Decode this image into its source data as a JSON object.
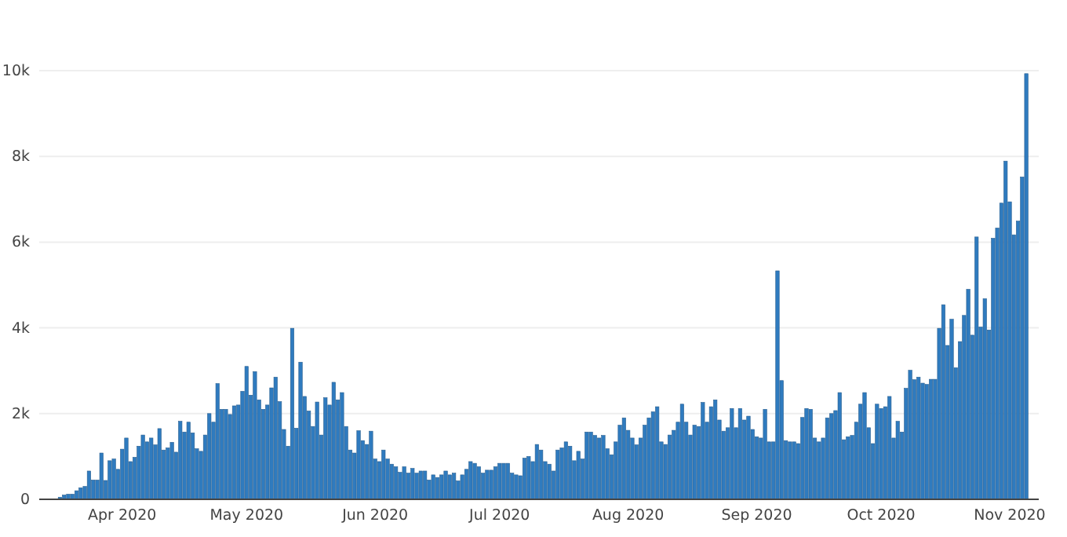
{
  "chart_data": {
    "type": "bar",
    "color": "#2f7bbf",
    "x": [
      "2020-03-17",
      "2020-03-18",
      "2020-03-19",
      "2020-03-20",
      "2020-03-21",
      "2020-03-22",
      "2020-03-23",
      "2020-03-24",
      "2020-03-25",
      "2020-03-26",
      "2020-03-27",
      "2020-03-28",
      "2020-03-29",
      "2020-03-30",
      "2020-03-31",
      "2020-04-01",
      "2020-04-02",
      "2020-04-03",
      "2020-04-04",
      "2020-04-05",
      "2020-04-06",
      "2020-04-07",
      "2020-04-08",
      "2020-04-09",
      "2020-04-10",
      "2020-04-11",
      "2020-04-12",
      "2020-04-13",
      "2020-04-14",
      "2020-04-15",
      "2020-04-16",
      "2020-04-17",
      "2020-04-18",
      "2020-04-19",
      "2020-04-20",
      "2020-04-21",
      "2020-04-22",
      "2020-04-23",
      "2020-04-24",
      "2020-04-25",
      "2020-04-26",
      "2020-04-27",
      "2020-04-28",
      "2020-04-29",
      "2020-04-30",
      "2020-05-01",
      "2020-05-02",
      "2020-05-03",
      "2020-05-04",
      "2020-05-05",
      "2020-05-06",
      "2020-05-07",
      "2020-05-08",
      "2020-05-09",
      "2020-05-10",
      "2020-05-11",
      "2020-05-12",
      "2020-05-13",
      "2020-05-14",
      "2020-05-15",
      "2020-05-16",
      "2020-05-17",
      "2020-05-18",
      "2020-05-19",
      "2020-05-20",
      "2020-05-21",
      "2020-05-22",
      "2020-05-23",
      "2020-05-24",
      "2020-05-25",
      "2020-05-26",
      "2020-05-27",
      "2020-05-28",
      "2020-05-29",
      "2020-05-30",
      "2020-05-31",
      "2020-06-01",
      "2020-06-02",
      "2020-06-03",
      "2020-06-04",
      "2020-06-05",
      "2020-06-06",
      "2020-06-07",
      "2020-06-08",
      "2020-06-09",
      "2020-06-10",
      "2020-06-11",
      "2020-06-12",
      "2020-06-13",
      "2020-06-14",
      "2020-06-15",
      "2020-06-16",
      "2020-06-17",
      "2020-06-18",
      "2020-06-19",
      "2020-06-20",
      "2020-06-21",
      "2020-06-22",
      "2020-06-23",
      "2020-06-24",
      "2020-06-25",
      "2020-06-26",
      "2020-06-27",
      "2020-06-28",
      "2020-06-29",
      "2020-06-30",
      "2020-07-01",
      "2020-07-02",
      "2020-07-03",
      "2020-07-04",
      "2020-07-05",
      "2020-07-06",
      "2020-07-07",
      "2020-07-08",
      "2020-07-09",
      "2020-07-10",
      "2020-07-11",
      "2020-07-12",
      "2020-07-13",
      "2020-07-14",
      "2020-07-15",
      "2020-07-16",
      "2020-07-17",
      "2020-07-18",
      "2020-07-19",
      "2020-07-20",
      "2020-07-21",
      "2020-07-22",
      "2020-07-23",
      "2020-07-24",
      "2020-07-25",
      "2020-07-26",
      "2020-07-27",
      "2020-07-28",
      "2020-07-29",
      "2020-07-30",
      "2020-07-31",
      "2020-08-01",
      "2020-08-02",
      "2020-08-03",
      "2020-08-04",
      "2020-08-05",
      "2020-08-06",
      "2020-08-07",
      "2020-08-08",
      "2020-08-09",
      "2020-08-10",
      "2020-08-11",
      "2020-08-12",
      "2020-08-13",
      "2020-08-14",
      "2020-08-15",
      "2020-08-16",
      "2020-08-17",
      "2020-08-18",
      "2020-08-19",
      "2020-08-20",
      "2020-08-21",
      "2020-08-22",
      "2020-08-23",
      "2020-08-24",
      "2020-08-25",
      "2020-08-26",
      "2020-08-27",
      "2020-08-28",
      "2020-08-29",
      "2020-08-30",
      "2020-08-31",
      "2020-09-01",
      "2020-09-02",
      "2020-09-03",
      "2020-09-04",
      "2020-09-05",
      "2020-09-06",
      "2020-09-07",
      "2020-09-08",
      "2020-09-09",
      "2020-09-10",
      "2020-09-11",
      "2020-09-12",
      "2020-09-13",
      "2020-09-14",
      "2020-09-15",
      "2020-09-16",
      "2020-09-17",
      "2020-09-18",
      "2020-09-19",
      "2020-09-20",
      "2020-09-21",
      "2020-09-22",
      "2020-09-23",
      "2020-09-24",
      "2020-09-25",
      "2020-09-26",
      "2020-09-27",
      "2020-09-28",
      "2020-09-29",
      "2020-09-30",
      "2020-10-01",
      "2020-10-02",
      "2020-10-03",
      "2020-10-04",
      "2020-10-05",
      "2020-10-06",
      "2020-10-07",
      "2020-10-08",
      "2020-10-09",
      "2020-10-10",
      "2020-10-11",
      "2020-10-12",
      "2020-10-13",
      "2020-10-14",
      "2020-10-15",
      "2020-10-16",
      "2020-10-17",
      "2020-10-18",
      "2020-10-19",
      "2020-10-20",
      "2020-10-21",
      "2020-10-22",
      "2020-10-23",
      "2020-10-24",
      "2020-10-25",
      "2020-10-26",
      "2020-10-27",
      "2020-10-28",
      "2020-10-29",
      "2020-10-30",
      "2020-10-31",
      "2020-11-01",
      "2020-11-02",
      "2020-11-03",
      "2020-11-04",
      "2020-11-05"
    ],
    "values": [
      50,
      100,
      120,
      120,
      200,
      270,
      300,
      660,
      450,
      450,
      1080,
      440,
      900,
      940,
      700,
      1170,
      1430,
      880,
      980,
      1240,
      1500,
      1340,
      1430,
      1270,
      1650,
      1150,
      1200,
      1330,
      1100,
      1820,
      1570,
      1800,
      1550,
      1180,
      1120,
      1500,
      2000,
      1800,
      2700,
      2100,
      2100,
      1980,
      2180,
      2200,
      2520,
      3100,
      2430,
      2980,
      2320,
      2100,
      2200,
      2600,
      2850,
      2280,
      1630,
      1240,
      3990,
      1660,
      3200,
      2400,
      2060,
      1700,
      2270,
      1500,
      2370,
      2200,
      2730,
      2320,
      2490,
      1700,
      1150,
      1080,
      1600,
      1370,
      1280,
      1590,
      940,
      880,
      1150,
      940,
      820,
      760,
      630,
      760,
      610,
      720,
      610,
      660,
      660,
      450,
      570,
      510,
      570,
      660,
      570,
      610,
      430,
      570,
      700,
      880,
      840,
      760,
      610,
      680,
      680,
      760,
      840,
      840,
      840,
      610,
      570,
      550,
      960,
      1000,
      880,
      1280,
      1150,
      880,
      820,
      660,
      1150,
      1200,
      1340,
      1240,
      900,
      1120,
      940,
      1570,
      1570,
      1490,
      1430,
      1490,
      1180,
      1040,
      1340,
      1730,
      1900,
      1610,
      1430,
      1270,
      1430,
      1730,
      1900,
      2040,
      2160,
      1340,
      1280,
      1500,
      1610,
      1800,
      2220,
      1800,
      1500,
      1730,
      1700,
      2260,
      1800,
      2160,
      2320,
      1850,
      1590,
      1670,
      2120,
      1670,
      2120,
      1850,
      1940,
      1630,
      1460,
      1430,
      2100,
      1340,
      1340,
      5330,
      2770,
      1370,
      1340,
      1340,
      1300,
      1910,
      2120,
      2100,
      1430,
      1340,
      1430,
      1900,
      2000,
      2070,
      2490,
      1390,
      1460,
      1490,
      1800,
      2220,
      2490,
      1670,
      1300,
      2220,
      2120,
      2160,
      2400,
      1430,
      1820,
      1570,
      2590,
      3010,
      2790,
      2850,
      2710,
      2680,
      2800,
      2800,
      3990,
      4540,
      3590,
      4200,
      3070,
      3680,
      4290,
      4900,
      3830,
      6120,
      4020,
      4680,
      3950,
      6090,
      6330,
      6910,
      7890,
      6940,
      6170,
      6490,
      7520,
      9930
    ],
    "xlim": [
      "2020-03-12",
      "2020-11-08"
    ],
    "xticks": [
      {
        "value": "2020-04-01",
        "label": "Apr 2020"
      },
      {
        "value": "2020-05-01",
        "label": "May 2020"
      },
      {
        "value": "2020-06-01",
        "label": "Jun 2020"
      },
      {
        "value": "2020-07-01",
        "label": "Jul 2020"
      },
      {
        "value": "2020-08-01",
        "label": "Aug 2020"
      },
      {
        "value": "2020-09-01",
        "label": "Sep 2020"
      },
      {
        "value": "2020-10-01",
        "label": "Oct 2020"
      },
      {
        "value": "2020-11-01",
        "label": "Nov 2020"
      }
    ],
    "ylim": [
      0,
      10000
    ],
    "yticks": [
      0,
      {
        "value": 2000,
        "label": "2k"
      },
      {
        "value": 4000,
        "label": "4k"
      },
      {
        "value": 6000,
        "label": "6k"
      },
      {
        "value": 8000,
        "label": "8k"
      },
      {
        "value": 10000,
        "label": "10k"
      }
    ],
    "grid": "y"
  }
}
